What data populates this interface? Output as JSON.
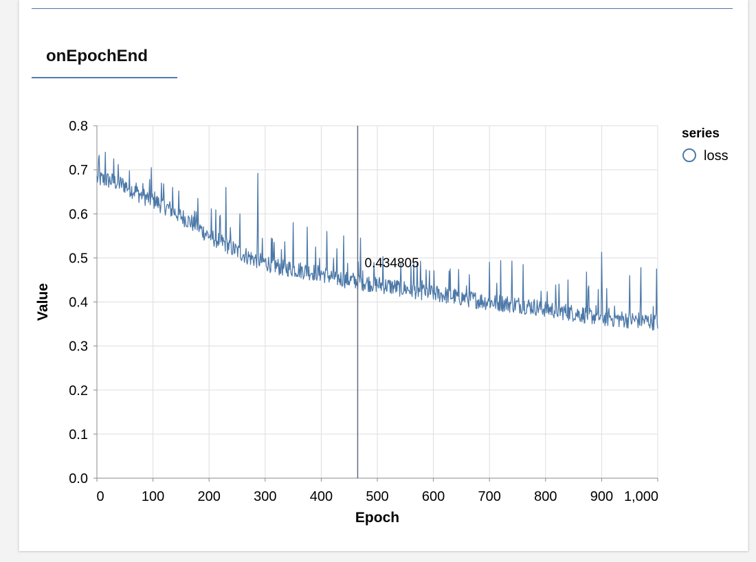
{
  "panel": {
    "title": "onEpochEnd"
  },
  "colors": {
    "series": "#4c78a8",
    "grid": "#dddddd",
    "axis": "#888888",
    "rule": "#4f73a8",
    "tooltip_rule": "#5f6b7a"
  },
  "chart_data": {
    "type": "line",
    "xlabel": "Epoch",
    "ylabel": "Value",
    "xlim": [
      0,
      1000
    ],
    "ylim": [
      0,
      0.8
    ],
    "x_ticks": [
      0,
      100,
      200,
      300,
      400,
      500,
      600,
      700,
      800,
      900,
      1000
    ],
    "x_tick_labels": [
      "0",
      "100",
      "200",
      "300",
      "400",
      "500",
      "600",
      "700",
      "800",
      "900",
      "1,000"
    ],
    "y_ticks": [
      0.0,
      0.1,
      0.2,
      0.3,
      0.4,
      0.5,
      0.6,
      0.7,
      0.8
    ],
    "y_tick_labels": [
      "0.0",
      "0.1",
      "0.2",
      "0.3",
      "0.4",
      "0.5",
      "0.6",
      "0.7",
      "0.8"
    ],
    "grid": true,
    "legend": {
      "title": "series",
      "placement": "top-right",
      "entries": [
        "loss"
      ]
    },
    "hover": {
      "epoch": 465,
      "value": 0.434805,
      "label": "0.434805"
    },
    "series": [
      {
        "name": "loss",
        "x": [
          0,
          25,
          50,
          75,
          100,
          125,
          150,
          175,
          200,
          225,
          250,
          275,
          300,
          325,
          350,
          375,
          400,
          425,
          450,
          475,
          500,
          525,
          550,
          575,
          600,
          625,
          650,
          675,
          700,
          725,
          750,
          775,
          800,
          825,
          850,
          875,
          900,
          925,
          950,
          1000
        ],
        "y": [
          0.68,
          0.675,
          0.665,
          0.645,
          0.63,
          0.615,
          0.595,
          0.575,
          0.55,
          0.535,
          0.515,
          0.5,
          0.49,
          0.48,
          0.475,
          0.47,
          0.465,
          0.455,
          0.45,
          0.445,
          0.44,
          0.435,
          0.43,
          0.425,
          0.42,
          0.415,
          0.41,
          0.405,
          0.4,
          0.397,
          0.394,
          0.39,
          0.385,
          0.38,
          0.375,
          0.37,
          0.365,
          0.362,
          0.36,
          0.355
        ]
      }
    ],
    "spikes": [
      {
        "epoch": 3,
        "value": 0.725
      },
      {
        "epoch": 15,
        "value": 0.74
      },
      {
        "epoch": 30,
        "value": 0.725
      },
      {
        "epoch": 70,
        "value": 0.67
      },
      {
        "epoch": 97,
        "value": 0.705
      },
      {
        "epoch": 115,
        "value": 0.67
      },
      {
        "epoch": 135,
        "value": 0.66
      },
      {
        "epoch": 180,
        "value": 0.635
      },
      {
        "epoch": 230,
        "value": 0.66
      },
      {
        "epoch": 255,
        "value": 0.6
      },
      {
        "epoch": 287,
        "value": 0.692
      },
      {
        "epoch": 350,
        "value": 0.58
      },
      {
        "epoch": 375,
        "value": 0.57
      },
      {
        "epoch": 410,
        "value": 0.56
      },
      {
        "epoch": 440,
        "value": 0.55
      },
      {
        "epoch": 470,
        "value": 0.545
      },
      {
        "epoch": 510,
        "value": 0.503
      },
      {
        "epoch": 565,
        "value": 0.49
      },
      {
        "epoch": 630,
        "value": 0.475
      },
      {
        "epoch": 700,
        "value": 0.49
      },
      {
        "epoch": 720,
        "value": 0.494
      },
      {
        "epoch": 740,
        "value": 0.493
      },
      {
        "epoch": 760,
        "value": 0.485
      },
      {
        "epoch": 840,
        "value": 0.45
      },
      {
        "epoch": 873,
        "value": 0.468
      },
      {
        "epoch": 900,
        "value": 0.513
      },
      {
        "epoch": 950,
        "value": 0.46
      },
      {
        "epoch": 970,
        "value": 0.478
      },
      {
        "epoch": 998,
        "value": 0.475
      }
    ]
  }
}
